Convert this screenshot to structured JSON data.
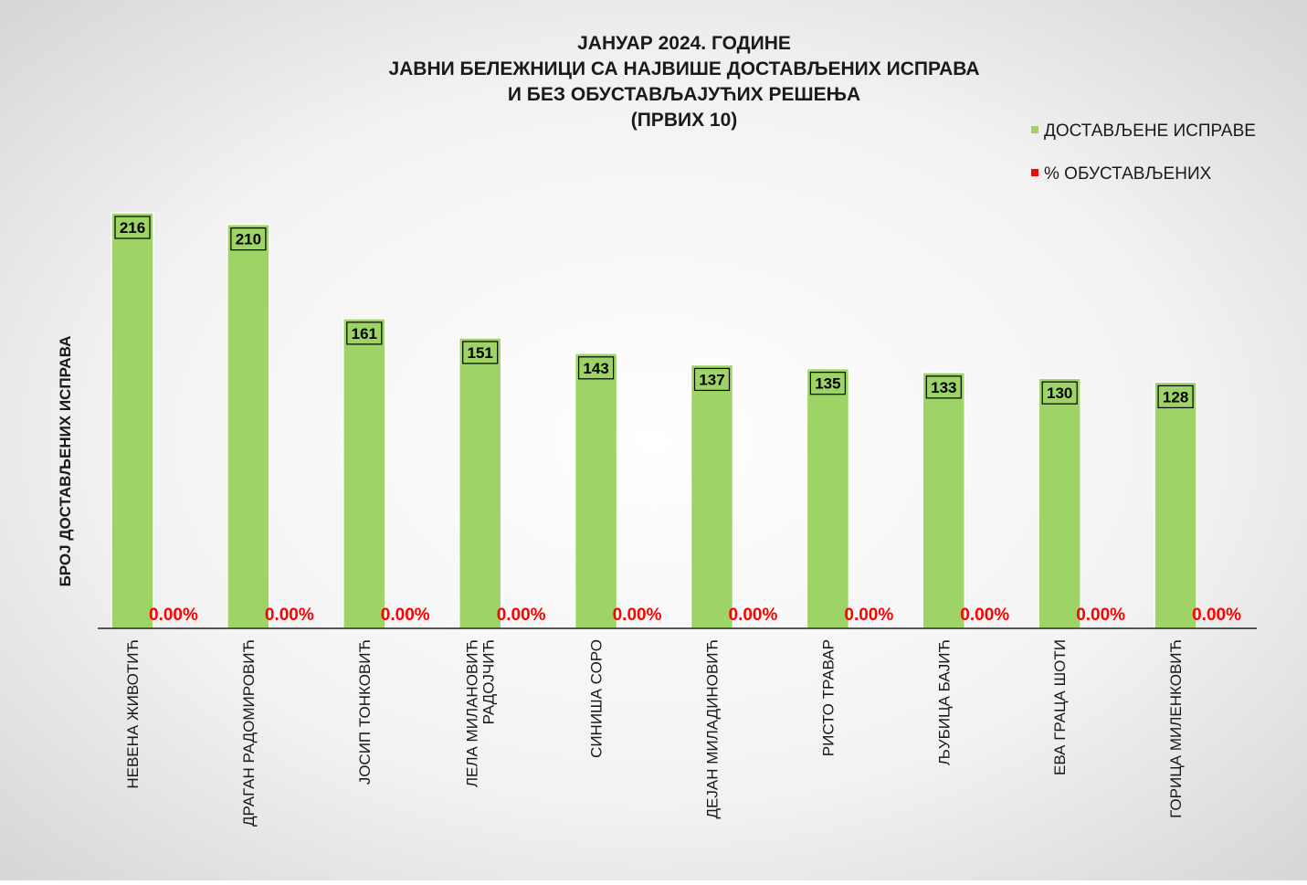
{
  "chart_data": {
    "type": "bar",
    "title_lines": [
      "ЈАНУАР 2024. ГОДИНЕ",
      "ЈАВНИ БЕЛЕЖНИЦИ СА НАЈВИШЕ ДОСТАВЉЕНИХ ИСПРАВА",
      "И БЕЗ ОБУСТАВЉАЈУЋИХ РЕШЕЊА",
      "(ПРВИХ 10)"
    ],
    "ylabel": "БРОЈ ДОСТАВЉЕНИХ ИСПРАВА",
    "xlabel": "",
    "ylim": [
      0,
      235
    ],
    "grid": false,
    "legend_position": "top-right",
    "categories": [
      [
        "НЕВЕНА ЖИВОТИЋ"
      ],
      [
        "ДРАГАН РАДОМИРОВИЋ"
      ],
      [
        "ЈОСИП ТОНКОВИЋ"
      ],
      [
        "ЛЕЛА МИЛАНОВИЋ",
        "РАДОЈЧИЋ"
      ],
      [
        "СИНИША СОРО"
      ],
      [
        "ДЕЈАН МИЛАДИНОВИЋ"
      ],
      [
        "РИСТО ТРАВАР"
      ],
      [
        "ЉУБИЦА БАЈИЋ"
      ],
      [
        "ЕВА ГРАЦА ШОТИ"
      ],
      [
        "ГОРИЦА МИЛЕНКОВИЋ"
      ]
    ],
    "series": [
      {
        "name": "ДОСТАВЉЕНЕ ИСПРАВЕ",
        "color": "#9dd465",
        "values": [
          216,
          210,
          161,
          151,
          143,
          137,
          135,
          133,
          130,
          128
        ],
        "labels": [
          "216",
          "210",
          "161",
          "151",
          "143",
          "137",
          "135",
          "133",
          "130",
          "128"
        ]
      },
      {
        "name": "% ОБУСТАВЉЕНИХ",
        "color": "#ff0000",
        "values": [
          0,
          0,
          0,
          0,
          0,
          0,
          0,
          0,
          0,
          0
        ],
        "labels": [
          "0.00%",
          "0.00%",
          "0.00%",
          "0.00%",
          "0.00%",
          "0.00%",
          "0.00%",
          "0.00%",
          "0.00%",
          "0.00%"
        ]
      }
    ]
  }
}
